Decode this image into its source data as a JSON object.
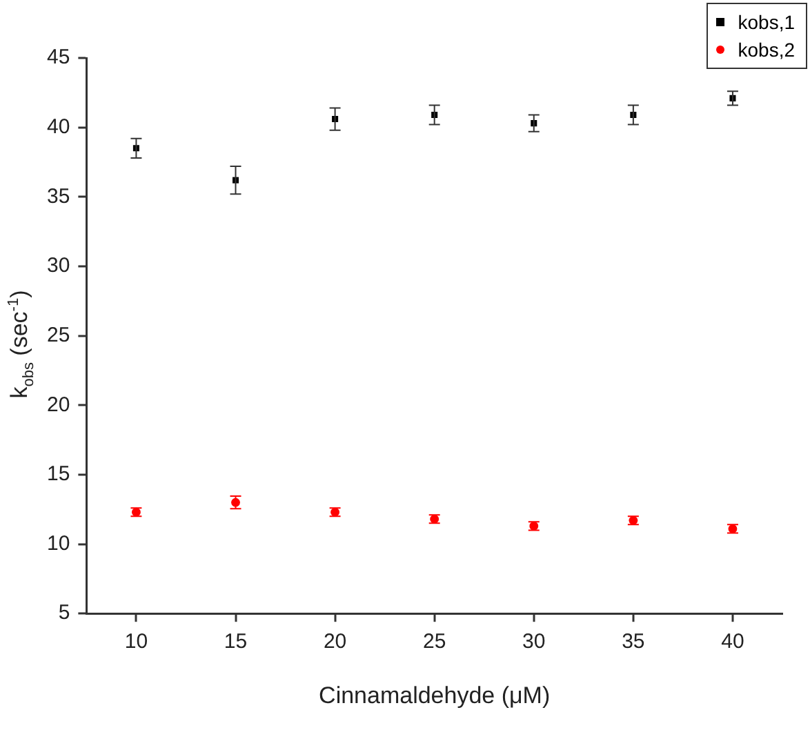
{
  "chart_data": {
    "type": "scatter",
    "xlabel": "Cinnamaldehyde (μM)",
    "ylabel": "k$_{obs}$ (sec$^{-1}$)",
    "x": [
      10,
      15,
      20,
      25,
      30,
      35,
      40
    ],
    "series": [
      {
        "name": "kobs,1",
        "color": "#000000",
        "marker": "square",
        "values": [
          38.5,
          36.2,
          40.6,
          40.9,
          40.3,
          40.9,
          42.1
        ],
        "errors": [
          0.7,
          1.0,
          0.8,
          0.7,
          0.6,
          0.7,
          0.5
        ]
      },
      {
        "name": "kobs,2",
        "color": "#ff0000",
        "marker": "circle",
        "values": [
          12.3,
          13.0,
          12.3,
          11.8,
          11.3,
          11.7,
          11.1
        ],
        "errors": [
          0.3,
          0.45,
          0.3,
          0.3,
          0.3,
          0.3,
          0.3
        ]
      }
    ],
    "xlim": [
      7.5,
      42.5
    ],
    "xticks": [
      10,
      15,
      20,
      25,
      30,
      35,
      40
    ],
    "ylim": [
      5,
      45
    ],
    "yticks": [
      5,
      10,
      15,
      20,
      25,
      30,
      35,
      40,
      45
    ],
    "grid": false,
    "legend": "top right"
  }
}
